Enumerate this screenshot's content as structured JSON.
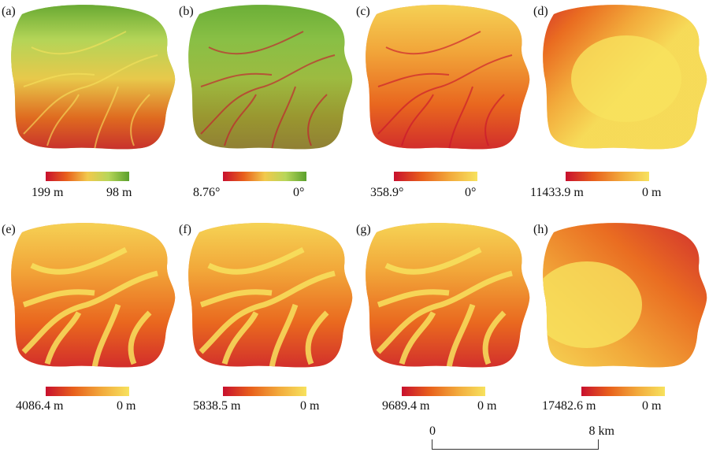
{
  "panels": [
    {
      "label": "(a)",
      "legend_max": "199 m",
      "legend_min": "98 m",
      "colors": [
        "#c8102e",
        "#e8601c",
        "#f2c94c",
        "#b8d65a",
        "#5aa02c"
      ],
      "fill": "#8cc63f",
      "style": "dem"
    },
    {
      "label": "(b)",
      "legend_max": "8.76°",
      "legend_min": "0°",
      "colors": [
        "#c8102e",
        "#e8601c",
        "#f2c94c",
        "#b8d65a",
        "#5aa02c"
      ],
      "fill": "#6fb33a",
      "style": "slope"
    },
    {
      "label": "(c)",
      "legend_max": "358.9°",
      "legend_min": "0°",
      "colors": [
        "#c8102e",
        "#e8601c",
        "#f2a93b",
        "#f7e25e"
      ],
      "fill": "#ec8a2e",
      "style": "aspect"
    },
    {
      "label": "(d)",
      "legend_max": "11433.9 m",
      "legend_min": "0 m",
      "colors": [
        "#c8102e",
        "#e8601c",
        "#f2a93b",
        "#f7e25e"
      ],
      "fill": "#f4b13a",
      "style": "radial"
    },
    {
      "label": "(e)",
      "legend_max": "4086.4 m",
      "legend_min": "0 m",
      "colors": [
        "#c8102e",
        "#e8601c",
        "#f2a93b",
        "#f7e25e"
      ],
      "fill": "#f08a2a",
      "style": "stream"
    },
    {
      "label": "(f)",
      "legend_max": "5838.5 m",
      "legend_min": "0 m",
      "colors": [
        "#c8102e",
        "#e8601c",
        "#f2a93b",
        "#f7e25e"
      ],
      "fill": "#f09a2e",
      "style": "stream"
    },
    {
      "label": "(g)",
      "legend_max": "9689.4 m",
      "legend_min": "0 m",
      "colors": [
        "#c8102e",
        "#e8601c",
        "#f2a93b",
        "#f7e25e"
      ],
      "fill": "#f19a30",
      "style": "stream"
    },
    {
      "label": "(h)",
      "legend_max": "17482.6 m",
      "legend_min": "0 m",
      "colors": [
        "#c8102e",
        "#e8601c",
        "#f2a93b",
        "#f7e25e"
      ],
      "fill": "#f2b43e",
      "style": "gradient"
    }
  ],
  "scale_bar": {
    "start": "0",
    "end": "8 km"
  }
}
